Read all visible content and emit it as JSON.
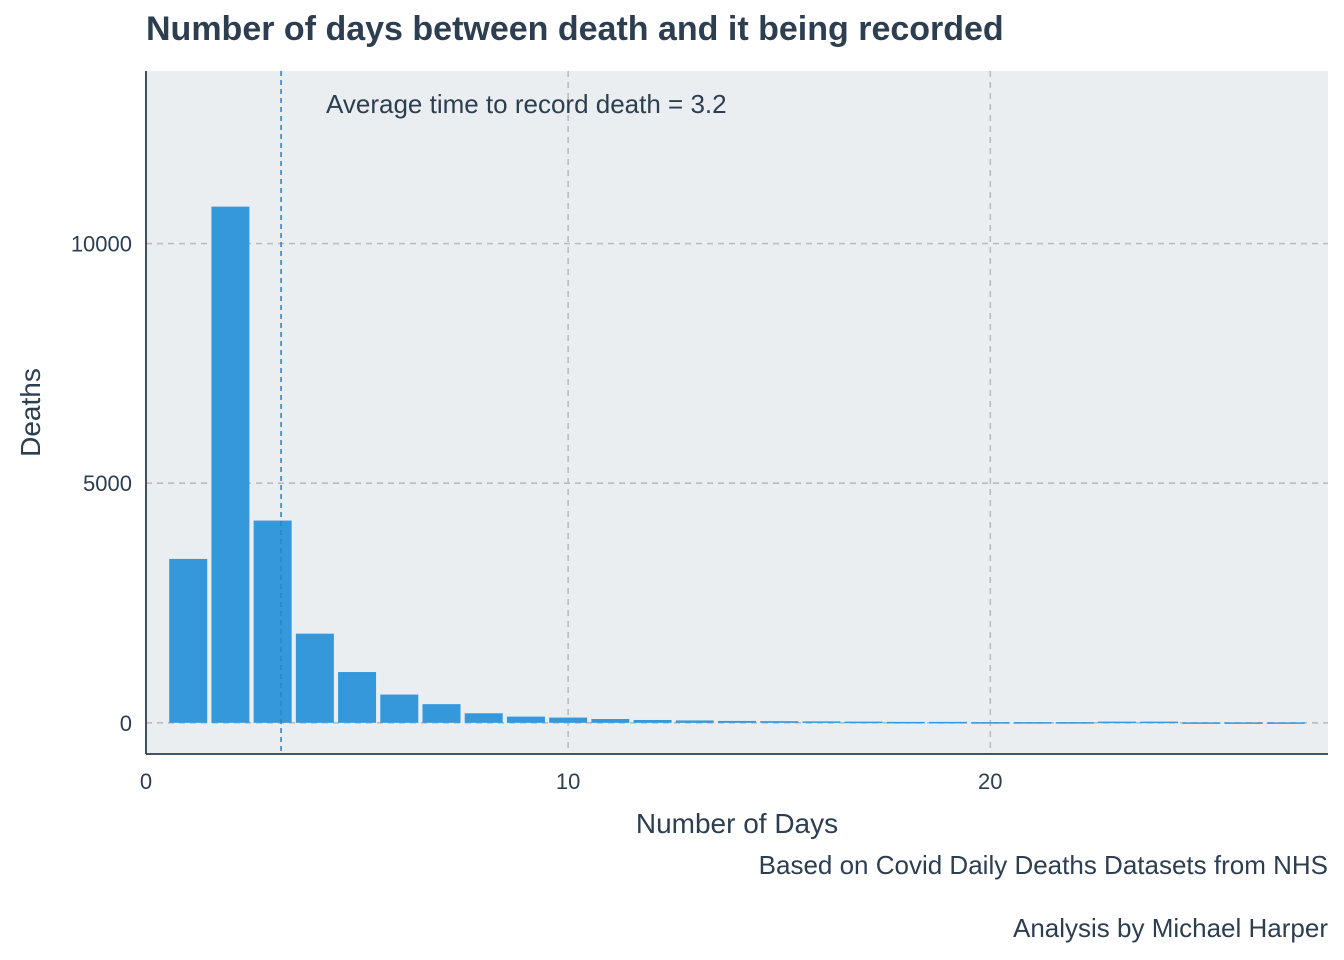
{
  "chart_data": {
    "type": "bar",
    "title": "Number of days between death and it being recorded",
    "xlabel": "Number of Days",
    "ylabel": "Deaths",
    "x": [
      1,
      2,
      3,
      4,
      5,
      6,
      7,
      8,
      9,
      10,
      11,
      12,
      13,
      14,
      15,
      16,
      17,
      18,
      19,
      20,
      21,
      22,
      23,
      24,
      25,
      26,
      27
    ],
    "values": [
      3420,
      10770,
      4220,
      1860,
      1060,
      590,
      390,
      200,
      130,
      110,
      80,
      60,
      50,
      40,
      35,
      30,
      25,
      20,
      20,
      15,
      15,
      15,
      25,
      25,
      10,
      10,
      10
    ],
    "xlim": [
      0,
      28
    ],
    "ylim": [
      -650,
      13600
    ],
    "xticks": [
      0,
      10,
      20
    ],
    "yticks": [
      0,
      5000,
      10000
    ],
    "grid": true,
    "bar_color": "#3498db",
    "panel_color": "#ebeef0",
    "reference_line": {
      "x": 3.2,
      "label": "Average time to record death = 3.2"
    }
  },
  "captions": [
    "Based on Covid Daily Deaths Datasets from NHS",
    "Analysis by Michael Harper"
  ]
}
